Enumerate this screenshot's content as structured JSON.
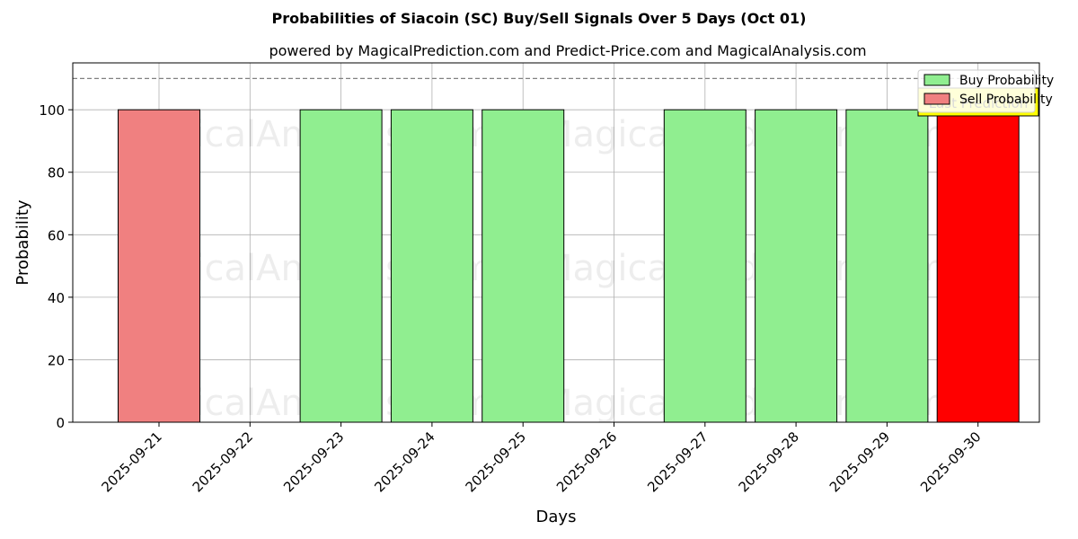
{
  "chart_data": {
    "type": "bar",
    "title": "Probabilities of Siacoin (SC) Buy/Sell Signals Over 5 Days (Oct 01)",
    "subtitle": "powered by MagicalPrediction.com and Predict-Price.com and MagicalAnalysis.com",
    "xlabel": "Days",
    "ylabel": "Probability",
    "ylim": [
      0,
      115
    ],
    "yticks": [
      0,
      20,
      40,
      60,
      80,
      100
    ],
    "grid": true,
    "legend_position": "top-right",
    "reference_line": 110,
    "categories": [
      "2025-09-21",
      "2025-09-22",
      "2025-09-23",
      "2025-09-24",
      "2025-09-25",
      "2025-09-26",
      "2025-09-27",
      "2025-09-28",
      "2025-09-29",
      "2025-09-30"
    ],
    "series": [
      {
        "name": "Buy Probability",
        "color": "#90ee90",
        "values": [
          0,
          0,
          100,
          100,
          100,
          0,
          100,
          100,
          100,
          0
        ]
      },
      {
        "name": "Sell Probability",
        "color": "#f08080",
        "values": [
          100,
          0,
          0,
          0,
          0,
          0,
          0,
          0,
          0,
          100
        ]
      }
    ],
    "highlight": {
      "category": "2025-09-30",
      "series": "Sell Probability",
      "color": "#ff0000"
    },
    "annotation": {
      "text": "Last Prediction",
      "background": "#ffff00"
    },
    "watermarks": [
      "MagicalAnalysis.com",
      "MagicalPrediction.com"
    ]
  }
}
